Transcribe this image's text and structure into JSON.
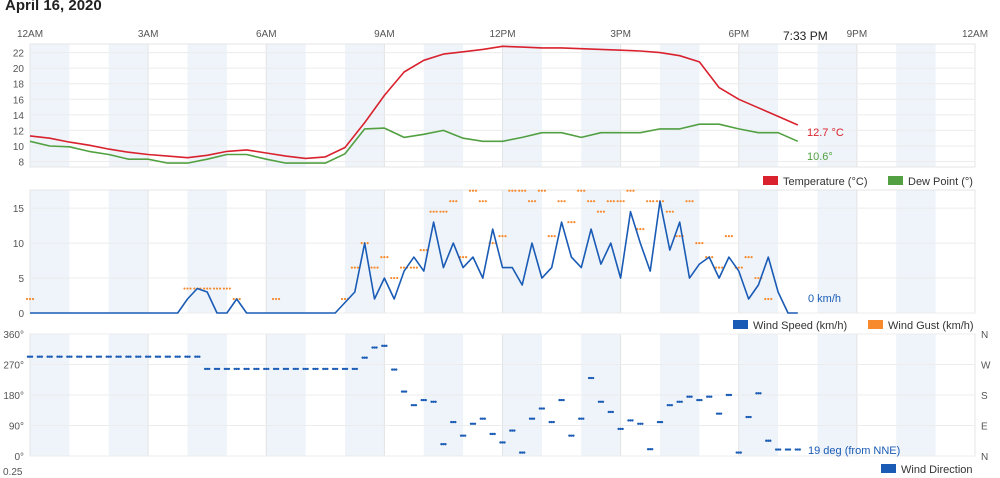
{
  "title": "April 16, 2020",
  "current_time": "7:33 PM",
  "x_ticks": [
    "12AM",
    "3AM",
    "6AM",
    "9AM",
    "12PM",
    "3PM",
    "6PM",
    "9PM",
    "12AM"
  ],
  "bottom_cutoff_label": "0.25",
  "colors": {
    "temperature": "#d9222e",
    "dew": "#52a042",
    "speed": "#1a5bb5",
    "gust": "#f68a2d",
    "direction": "#1a5bb5",
    "shade": "#eef4fa"
  },
  "chart_data": [
    {
      "type": "line",
      "title": "Temperature / Dew Point",
      "x_unit": "hours since midnight",
      "x_step_hours": 0.5,
      "ylim": [
        7.3,
        23.1
      ],
      "y_ticks": [
        8,
        10,
        12,
        14,
        16,
        18,
        20,
        22
      ],
      "series": [
        {
          "name": "Temperature (°C)",
          "current_label": "12.7 °C",
          "values": [
            11.3,
            11.0,
            10.5,
            10.1,
            9.6,
            9.2,
            8.9,
            8.7,
            8.5,
            8.8,
            9.3,
            9.5,
            9.1,
            8.7,
            8.4,
            8.6,
            9.8,
            13.0,
            16.5,
            19.5,
            21.0,
            21.8,
            22.1,
            22.4,
            22.8,
            22.7,
            22.6,
            22.6,
            22.5,
            22.4,
            22.3,
            22.2,
            22.0,
            21.6,
            20.8,
            17.5,
            16.0,
            14.9,
            13.8,
            12.7
          ]
        },
        {
          "name": "Dew Point (°)",
          "current_label": "10.6°",
          "values": [
            10.6,
            10.0,
            9.9,
            9.3,
            8.9,
            8.3,
            8.3,
            7.8,
            7.8,
            8.3,
            8.9,
            8.9,
            8.3,
            7.8,
            7.8,
            7.8,
            9.0,
            12.2,
            12.3,
            11.1,
            11.5,
            12.0,
            11.0,
            10.6,
            10.6,
            11.1,
            11.7,
            11.7,
            11.1,
            11.7,
            11.7,
            11.7,
            12.2,
            12.2,
            12.8,
            12.8,
            12.2,
            11.7,
            11.7,
            10.6
          ]
        }
      ]
    },
    {
      "type": "line",
      "title": "Wind",
      "x_unit": "hours since midnight",
      "x_step_hours": 0.25,
      "ylim": [
        0,
        17.6
      ],
      "y_ticks": [
        0,
        5,
        10,
        15
      ],
      "series": [
        {
          "name": "Wind Speed (km/h)",
          "current_label": "0 km/h",
          "values": [
            0,
            0,
            0,
            0,
            0,
            0,
            0,
            0,
            0,
            0,
            0,
            0,
            0,
            0,
            0,
            0,
            2,
            3.5,
            3,
            0,
            0,
            2,
            0,
            0,
            0,
            0,
            0,
            0,
            0,
            0,
            0,
            0,
            1.5,
            3,
            10,
            2,
            5,
            2,
            6,
            8,
            6,
            13,
            6.5,
            10,
            6.5,
            8,
            5,
            12,
            6.5,
            6.5,
            4,
            10,
            5,
            6.5,
            13,
            8,
            6.5,
            12,
            7,
            10,
            5,
            14.5,
            10,
            6,
            16,
            9,
            13,
            5,
            7,
            8,
            5,
            8,
            6,
            2,
            4,
            8,
            3,
            0,
            0
          ]
        },
        {
          "name": "Wind Gust (km/h)",
          "values": [
            2,
            null,
            null,
            null,
            null,
            null,
            null,
            null,
            null,
            null,
            null,
            null,
            null,
            null,
            null,
            null,
            3.5,
            3.5,
            3.5,
            3.5,
            3.5,
            2,
            null,
            null,
            null,
            2,
            null,
            null,
            null,
            null,
            null,
            null,
            2,
            6.5,
            10,
            6.5,
            8,
            5,
            6.5,
            6.5,
            9,
            14.5,
            14.5,
            16,
            8,
            17.5,
            16,
            10,
            11,
            17.5,
            17.5,
            16,
            17.5,
            11,
            16,
            13,
            17.5,
            16,
            14.5,
            16,
            16,
            17.5,
            12,
            16,
            16,
            14.5,
            11,
            16,
            10,
            8,
            6.5,
            11,
            6.5,
            8,
            5,
            2,
            null,
            null,
            null
          ]
        }
      ]
    },
    {
      "type": "scatter",
      "title": "Wind Direction",
      "x_unit": "hours since midnight",
      "x_step_hours": 0.25,
      "ylim": [
        0,
        360
      ],
      "y_ticks": [
        "0°",
        "90°",
        "180°",
        "270°",
        "360°"
      ],
      "y_ticks_right": [
        "N",
        "E",
        "S",
        "W",
        "N"
      ],
      "series": [
        {
          "name": "Wind Direction",
          "current_label": "19 deg (from NNE)",
          "values": [
            293,
            293,
            293,
            293,
            293,
            293,
            293,
            293,
            293,
            293,
            293,
            293,
            293,
            293,
            293,
            293,
            293,
            293,
            257,
            257,
            257,
            257,
            257,
            257,
            257,
            257,
            257,
            257,
            257,
            257,
            257,
            257,
            257,
            257,
            290,
            320,
            325,
            255,
            190,
            150,
            165,
            160,
            35,
            100,
            60,
            95,
            110,
            65,
            40,
            75,
            10,
            110,
            140,
            100,
            165,
            60,
            110,
            230,
            160,
            130,
            80,
            105,
            95,
            20,
            100,
            150,
            160,
            175,
            165,
            175,
            125,
            180,
            10,
            115,
            185,
            45,
            19,
            19,
            19
          ]
        }
      ]
    }
  ]
}
